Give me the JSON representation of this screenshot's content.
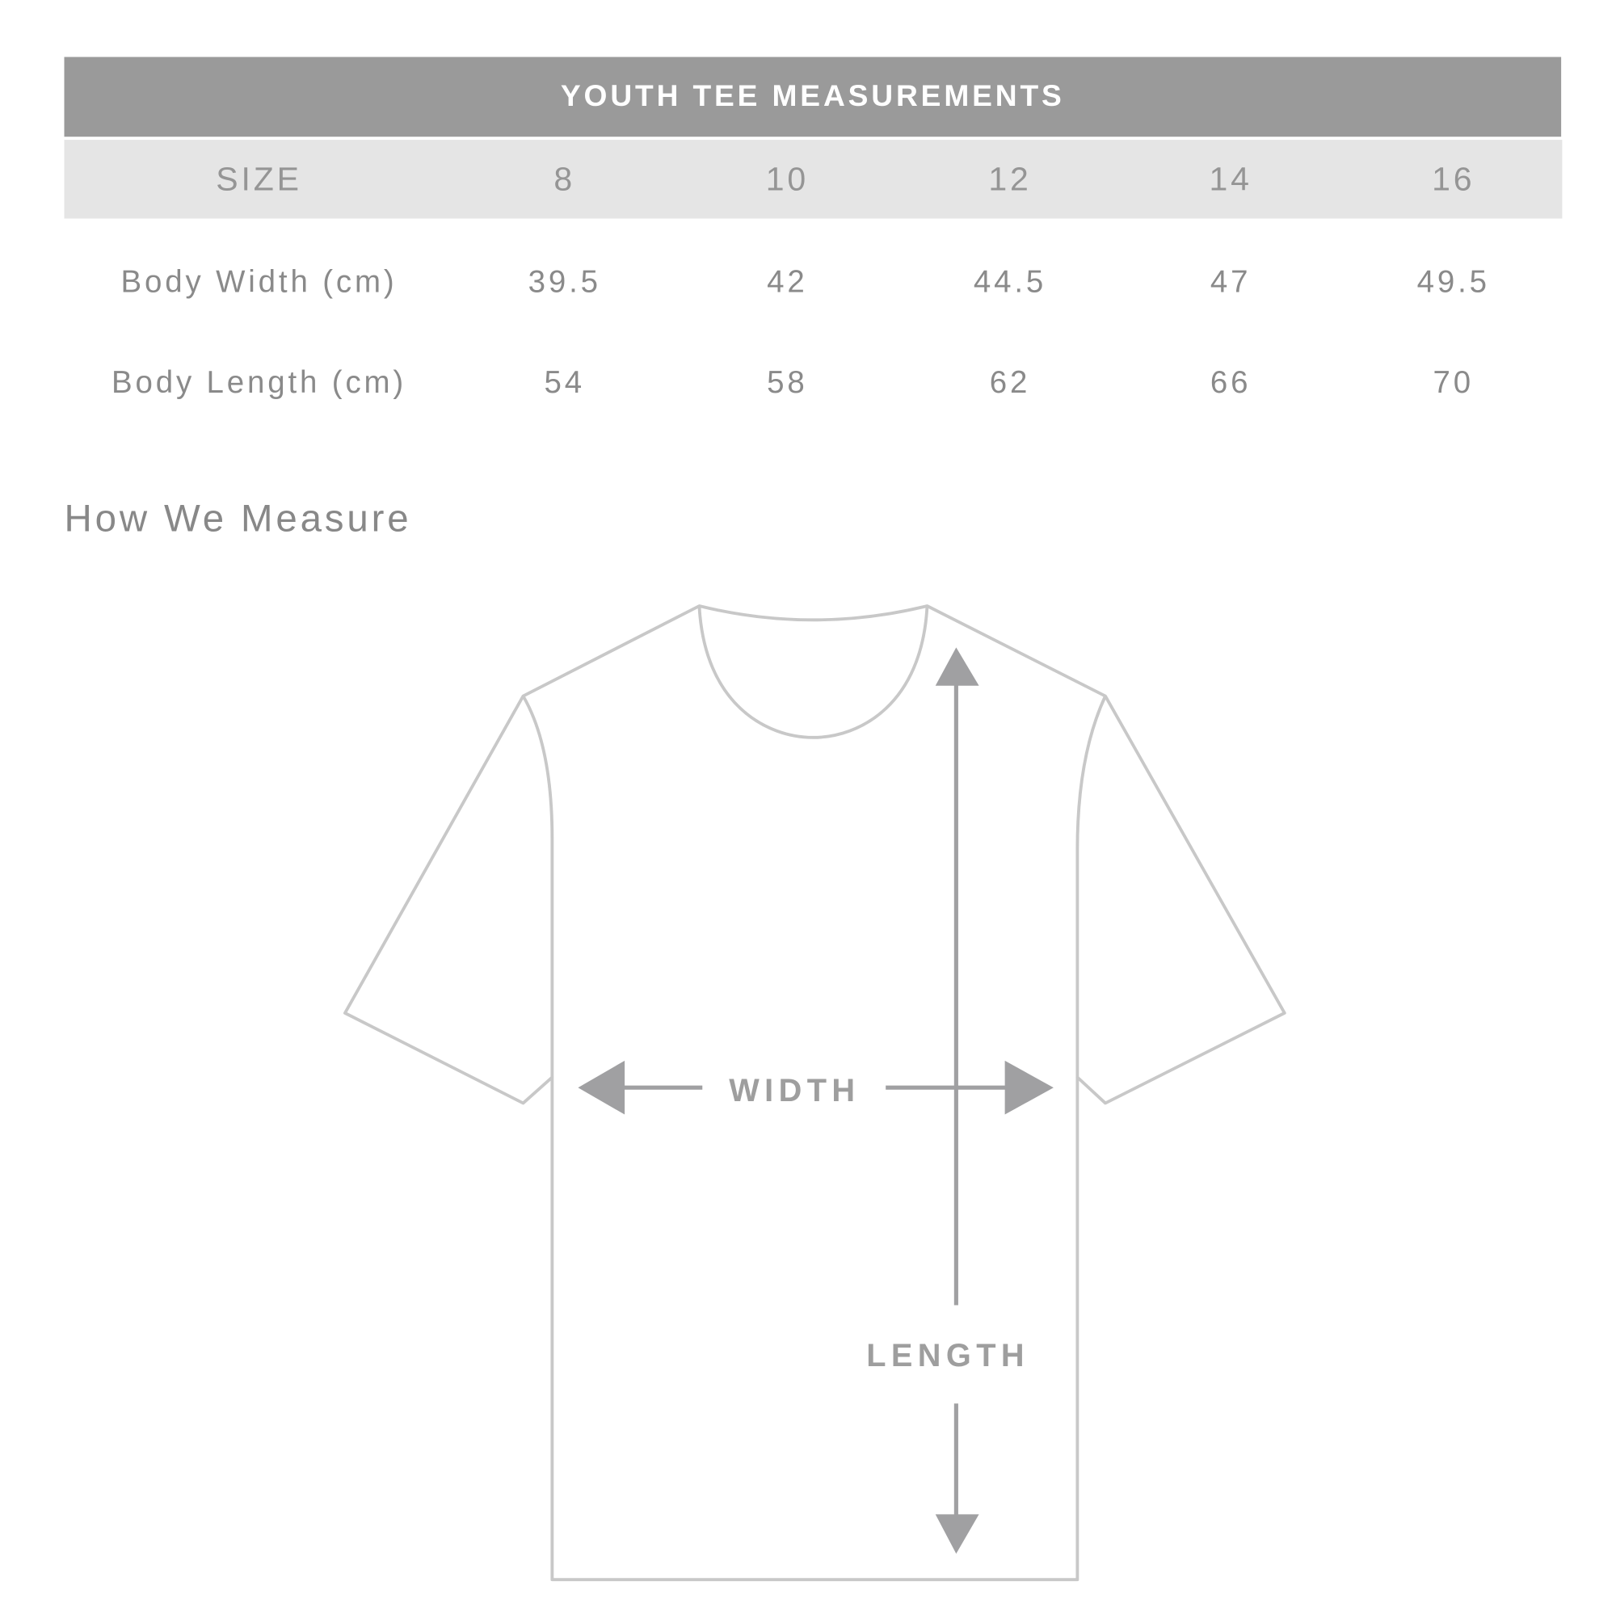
{
  "table": {
    "title": "YOUTH TEE MEASUREMENTS",
    "header": [
      "SIZE",
      "8",
      "10",
      "12",
      "14",
      "16"
    ],
    "rows": [
      [
        "Body Width (cm)",
        "39.5",
        "42",
        "44.5",
        "47",
        "49.5"
      ],
      [
        "Body Length (cm)",
        "54",
        "58",
        "62",
        "66",
        "70"
      ]
    ]
  },
  "section_title": "How We Measure",
  "diagram": {
    "width_label": "WIDTH",
    "length_label": "LENGTH",
    "colors": {
      "outline": "#c8c8c8",
      "arrow": "#a0a0a2",
      "header_bg": "#9a9a9a",
      "size_row_bg": "#e5e5e5"
    }
  }
}
